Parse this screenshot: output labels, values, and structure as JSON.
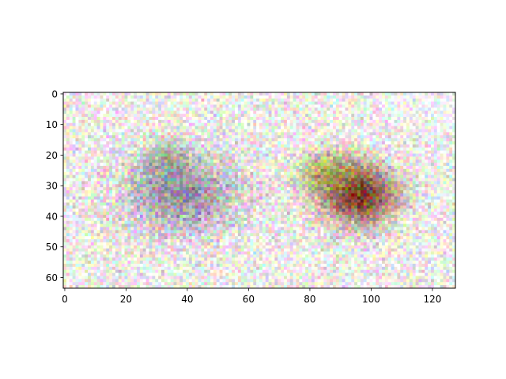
{
  "chart_data": {
    "type": "heatmap",
    "title": "",
    "xlabel": "",
    "ylabel": "",
    "image_shape": [
      64,
      128
    ],
    "xlim": [
      -0.5,
      127.5
    ],
    "ylim": [
      63.5,
      -0.5
    ],
    "y_axis_inverted": true,
    "grid": false,
    "background_color": "#f4f1ea",
    "x_ticks": [
      0,
      20,
      40,
      60,
      80,
      100,
      120
    ],
    "x_tick_labels": [
      "0",
      "20",
      "40",
      "60",
      "80",
      "100",
      "120"
    ],
    "y_ticks": [
      0,
      10,
      20,
      30,
      40,
      50,
      60
    ],
    "y_tick_labels": [
      "0",
      "10",
      "20",
      "30",
      "40",
      "50",
      "60"
    ],
    "regions": [
      {
        "description": "grey-purple blob",
        "center": [
          38,
          33
        ],
        "radius": [
          22,
          15
        ],
        "color": "#7f7390",
        "strength": 0.75
      },
      {
        "description": "grey-green core",
        "center": [
          33,
          22
        ],
        "radius": [
          9,
          8
        ],
        "color": "#6d7f70",
        "strength": 0.5
      },
      {
        "description": "dark red-brown blob",
        "center": [
          96,
          33
        ],
        "radius": [
          14,
          11
        ],
        "color": "#6e2d18",
        "strength": 0.95
      },
      {
        "description": "olive-yellow halo",
        "center": [
          86,
          26
        ],
        "radius": [
          12,
          8
        ],
        "color": "#8c8a1e",
        "strength": 0.6
      },
      {
        "description": "bright white top-right",
        "center": [
          122,
          5
        ],
        "radius": [
          18,
          9
        ],
        "color": "#ffffff",
        "strength": 0.9
      }
    ]
  }
}
